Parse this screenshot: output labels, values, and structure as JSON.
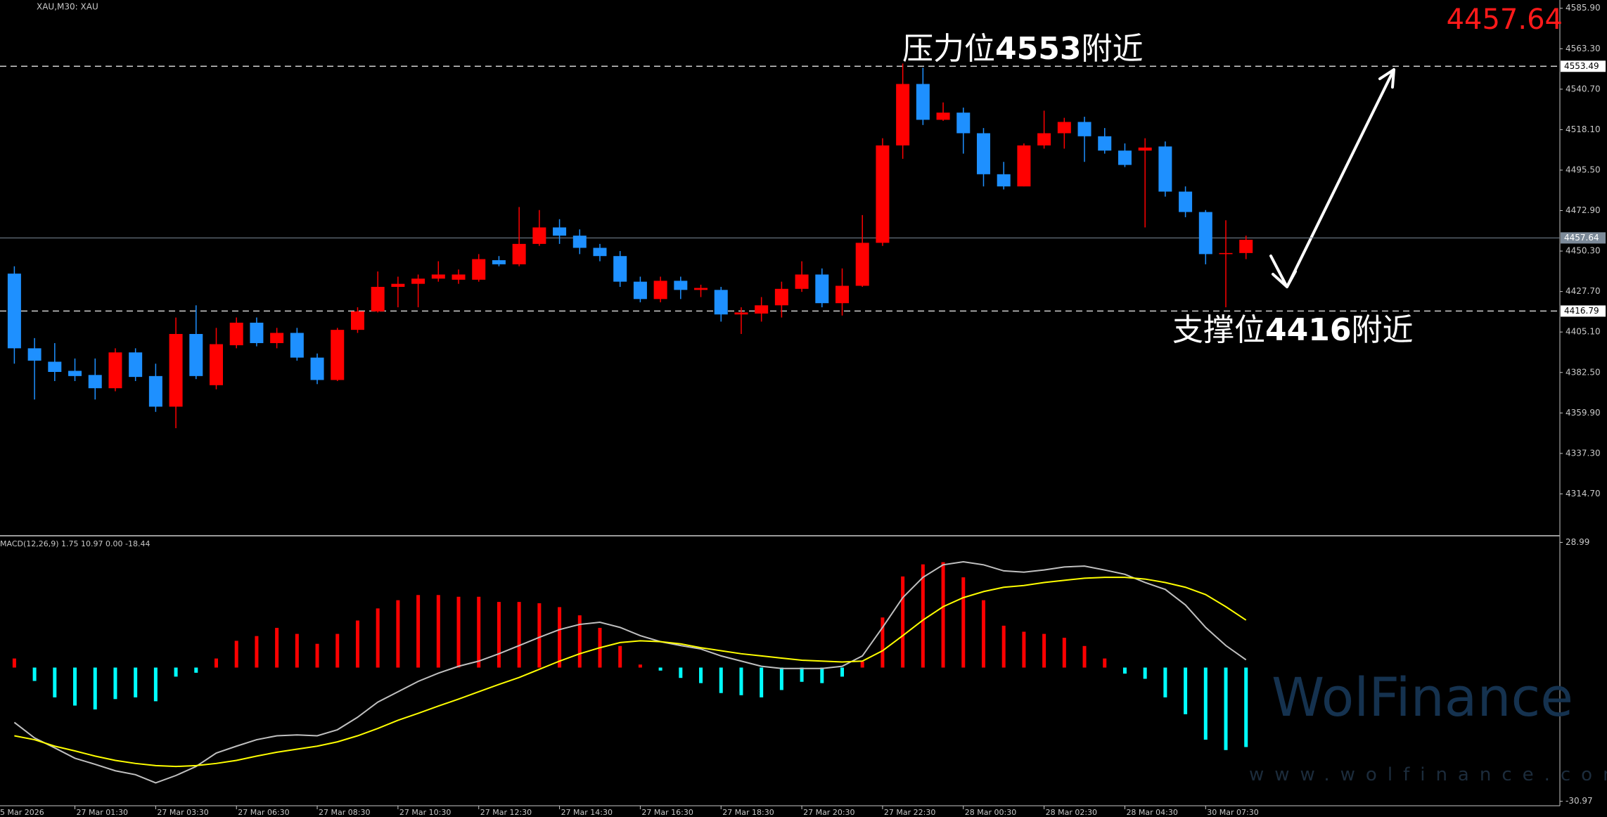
{
  "chart_data": {
    "type": "candlestick",
    "symbol_label": "XAU,M30: XAU",
    "bid": 4457.64,
    "date_start": "5 Mar 2026",
    "up_color": "#ff0000",
    "down_color": "#1e90ff",
    "ylim": [
      4292.1,
      4590.5
    ],
    "yticks": [
      {
        "value": 4585.9,
        "label": "4585.90"
      },
      {
        "value": 4563.3,
        "label": "4563.30"
      },
      {
        "value": 4540.7,
        "label": "4540.70"
      },
      {
        "value": 4518.1,
        "label": "4518.10"
      },
      {
        "value": 4495.5,
        "label": "4495.50"
      },
      {
        "value": 4472.9,
        "label": "4472.90"
      },
      {
        "value": 4450.3,
        "label": "4450.30"
      },
      {
        "value": 4427.7,
        "label": "4427.70"
      },
      {
        "value": 4405.1,
        "label": "4405.10"
      },
      {
        "value": 4382.5,
        "label": "4382.50"
      },
      {
        "value": 4359.9,
        "label": "4359.90"
      },
      {
        "value": 4337.3,
        "label": "4337.30"
      },
      {
        "value": 4314.7,
        "label": "4314.70"
      }
    ],
    "hlines": [
      {
        "value": 4553.49,
        "style": "dashed"
      },
      {
        "value": 4457.64,
        "style": "solid"
      },
      {
        "value": 4416.79,
        "style": "dashed"
      }
    ],
    "annotations": [
      {
        "parts": [
          "压力位",
          "4553",
          "附近"
        ]
      },
      {
        "parts": [
          "支撑位",
          "4416",
          "附近"
        ]
      }
    ],
    "categories": [
      null,
      null,
      null,
      "27 Mar 01:30",
      null,
      null,
      null,
      "27 Mar 03:30",
      null,
      null,
      null,
      "27 Mar 06:30",
      null,
      null,
      null,
      "27 Mar 08:30",
      null,
      null,
      null,
      "27 Mar 10:30",
      null,
      null,
      null,
      "27 Mar 12:30",
      null,
      null,
      null,
      "27 Mar 14:30",
      null,
      null,
      null,
      "27 Mar 16:30",
      null,
      null,
      null,
      "27 Mar 18:30",
      null,
      null,
      null,
      "27 Mar 20:30",
      null,
      null,
      null,
      "27 Mar 22:30",
      null,
      null,
      null,
      "28 Mar 00:30",
      null,
      null,
      null,
      "28 Mar 02:30",
      null,
      null,
      null,
      "28 Mar 04:30",
      null,
      null,
      null,
      "30 Mar 07:30",
      null,
      null
    ],
    "ohlc": [
      [
        4437.7,
        4441.8,
        4387.4,
        4396.0
      ],
      [
        4396.0,
        4401.7,
        4367.4,
        4389.1
      ],
      [
        4388.5,
        4398.9,
        4377.7,
        4382.8
      ],
      [
        4383.4,
        4390.3,
        4377.7,
        4380.5
      ],
      [
        4381.1,
        4390.3,
        4367.4,
        4373.7
      ],
      [
        4373.7,
        4396.0,
        4372.0,
        4393.7
      ],
      [
        4393.7,
        4396.0,
        4377.7,
        4380.0
      ],
      [
        4380.5,
        4387.4,
        4360.5,
        4363.4
      ],
      [
        4363.4,
        4413.2,
        4351.4,
        4404.0
      ],
      [
        4404.0,
        4420.0,
        4378.8,
        4380.5
      ],
      [
        4375.4,
        4407.4,
        4373.1,
        4398.3
      ],
      [
        4397.7,
        4413.2,
        4396.0,
        4410.3
      ],
      [
        4410.3,
        4413.2,
        4397.1,
        4398.9
      ],
      [
        4398.9,
        4407.4,
        4396.0,
        4404.6
      ],
      [
        4404.6,
        4407.4,
        4389.1,
        4390.8
      ],
      [
        4390.8,
        4393.1,
        4376.0,
        4378.3
      ],
      [
        4378.3,
        4407.4,
        4377.7,
        4406.3
      ],
      [
        4406.3,
        4418.9,
        4404.6,
        4416.6
      ],
      [
        4416.6,
        4438.9,
        4416.0,
        4430.3
      ],
      [
        4430.3,
        4436.0,
        4418.9,
        4432.0
      ],
      [
        4432.0,
        4437.2,
        4418.9,
        4434.9
      ],
      [
        4434.9,
        4444.6,
        4433.2,
        4437.2
      ],
      [
        4434.3,
        4440.0,
        4432.0,
        4437.2
      ],
      [
        4434.3,
        4448.6,
        4433.2,
        4445.8
      ],
      [
        4445.2,
        4447.5,
        4441.8,
        4442.9
      ],
      [
        4442.9,
        4474.9,
        4441.8,
        4454.3
      ],
      [
        4454.3,
        4473.2,
        4453.2,
        4463.5
      ],
      [
        4463.5,
        4468.1,
        4454.3,
        4458.9
      ],
      [
        4458.9,
        4462.4,
        4448.6,
        4452.1
      ],
      [
        4452.1,
        4454.3,
        4444.6,
        4447.5
      ],
      [
        4447.5,
        4450.3,
        4430.3,
        4433.2
      ],
      [
        4433.2,
        4436.0,
        4421.7,
        4423.5
      ],
      [
        4423.5,
        4436.0,
        4421.7,
        4433.7
      ],
      [
        4433.7,
        4436.0,
        4423.5,
        4428.6
      ],
      [
        4428.6,
        4431.5,
        4424.6,
        4429.7
      ],
      [
        4428.6,
        4430.3,
        4410.9,
        4414.9
      ],
      [
        4414.9,
        4418.9,
        4404.0,
        4416.0
      ],
      [
        4415.4,
        4424.6,
        4410.9,
        4420.0
      ],
      [
        4420.0,
        4433.2,
        4413.2,
        4429.2
      ],
      [
        4429.2,
        4444.6,
        4427.5,
        4437.2
      ],
      [
        4437.2,
        4440.6,
        4418.9,
        4421.2
      ],
      [
        4421.2,
        4440.6,
        4414.3,
        4430.9
      ],
      [
        4430.9,
        4470.4,
        4430.3,
        4454.9
      ],
      [
        4454.9,
        4513.3,
        4453.2,
        4509.3
      ],
      [
        4509.3,
        4555.0,
        4501.8,
        4543.6
      ],
      [
        4543.6,
        4552.7,
        4520.7,
        4523.6
      ],
      [
        4523.6,
        4533.3,
        4523.0,
        4527.6
      ],
      [
        4527.6,
        4530.4,
        4504.7,
        4516.1
      ],
      [
        4516.1,
        4519.0,
        4486.4,
        4493.2
      ],
      [
        4493.2,
        4500.1,
        4484.7,
        4486.4
      ],
      [
        4486.4,
        4510.4,
        4486.4,
        4509.3
      ],
      [
        4509.3,
        4528.7,
        4507.5,
        4516.1
      ],
      [
        4516.1,
        4524.7,
        4507.5,
        4522.4
      ],
      [
        4522.4,
        4525.3,
        4500.1,
        4514.4
      ],
      [
        4514.4,
        4519.0,
        4504.7,
        4506.4
      ],
      [
        4506.4,
        4510.4,
        4497.2,
        4498.4
      ],
      [
        4506.4,
        4513.3,
        4463.5,
        4508.1
      ],
      [
        4508.7,
        4511.5,
        4480.7,
        4483.5
      ],
      [
        4483.5,
        4486.4,
        4469.2,
        4472.1
      ],
      [
        4472.1,
        4473.2,
        4442.9,
        4448.6
      ],
      [
        4448.6,
        4467.5,
        4418.9,
        4449.2
      ],
      [
        4449.2,
        4458.9,
        4445.8,
        4456.6
      ]
    ],
    "macd": {
      "label": "MACD(12,26,9) 1.75 10.97 0.00 -18.44",
      "ylim": [
        -32.0,
        30.2
      ],
      "yticks": [
        28.99,
        -30.97
      ],
      "pos_color": "#ff0000",
      "neg_color": "#00ffff",
      "histogram": [
        2.1,
        -3.1,
        -6.9,
        -8.8,
        -9.7,
        -7.3,
        -6.9,
        -7.8,
        -2.1,
        -1.2,
        2.1,
        6.2,
        7.3,
        9.2,
        7.8,
        5.5,
        7.8,
        10.9,
        13.7,
        15.6,
        16.8,
        16.8,
        16.4,
        16.4,
        15.2,
        15.2,
        14.9,
        14.0,
        12.1,
        9.2,
        5.0,
        0.7,
        -0.7,
        -2.4,
        -3.6,
        -5.9,
        -6.4,
        -6.9,
        -5.2,
        -3.3,
        -3.6,
        -2.1,
        1.4,
        11.6,
        21.1,
        23.9,
        24.4,
        20.9,
        15.6,
        9.7,
        8.3,
        7.8,
        6.9,
        5.0,
        2.1,
        -1.4,
        -2.6,
        -6.9,
        -10.8,
        -16.7,
        -19.1,
        -18.4
      ],
      "series": [
        {
          "color": "#c0c0c0",
          "values": [
            -12.7,
            -16.3,
            -18.6,
            -21.0,
            -22.4,
            -23.9,
            -24.8,
            -26.7,
            -25.0,
            -22.9,
            -19.8,
            -18.2,
            -16.7,
            -15.8,
            -15.6,
            -15.8,
            -14.4,
            -11.5,
            -8.0,
            -5.6,
            -3.2,
            -1.3,
            0.3,
            1.5,
            3.2,
            5.1,
            7.0,
            8.8,
            10.0,
            10.5,
            9.3,
            7.4,
            6.0,
            5.1,
            4.3,
            2.7,
            1.5,
            0.3,
            -0.2,
            -0.2,
            -0.2,
            0.3,
            2.7,
            9.3,
            16.2,
            20.9,
            23.8,
            24.5,
            23.8,
            22.4,
            22.1,
            22.6,
            23.3,
            23.5,
            22.6,
            21.6,
            19.7,
            18.1,
            14.5,
            9.3,
            5.1,
            1.8
          ]
        },
        {
          "color": "#ffff00",
          "values": [
            -15.8,
            -16.7,
            -18.2,
            -19.3,
            -20.5,
            -21.5,
            -22.2,
            -22.7,
            -22.9,
            -22.7,
            -22.2,
            -21.5,
            -20.5,
            -19.6,
            -18.9,
            -18.2,
            -17.2,
            -15.8,
            -14.1,
            -12.2,
            -10.6,
            -8.9,
            -7.3,
            -5.6,
            -3.9,
            -2.3,
            -0.4,
            1.5,
            3.2,
            4.6,
            5.8,
            6.2,
            6.0,
            5.5,
            4.6,
            3.9,
            3.2,
            2.7,
            2.2,
            1.7,
            1.5,
            1.3,
            1.5,
            3.9,
            7.4,
            11.0,
            14.1,
            16.2,
            17.6,
            18.6,
            19.0,
            19.7,
            20.2,
            20.7,
            20.9,
            20.9,
            20.5,
            19.7,
            18.6,
            16.9,
            14.1,
            11.0
          ]
        }
      ]
    },
    "watermark": {
      "brand": "WolFinance",
      "url": "www.wolfinance.com"
    }
  }
}
